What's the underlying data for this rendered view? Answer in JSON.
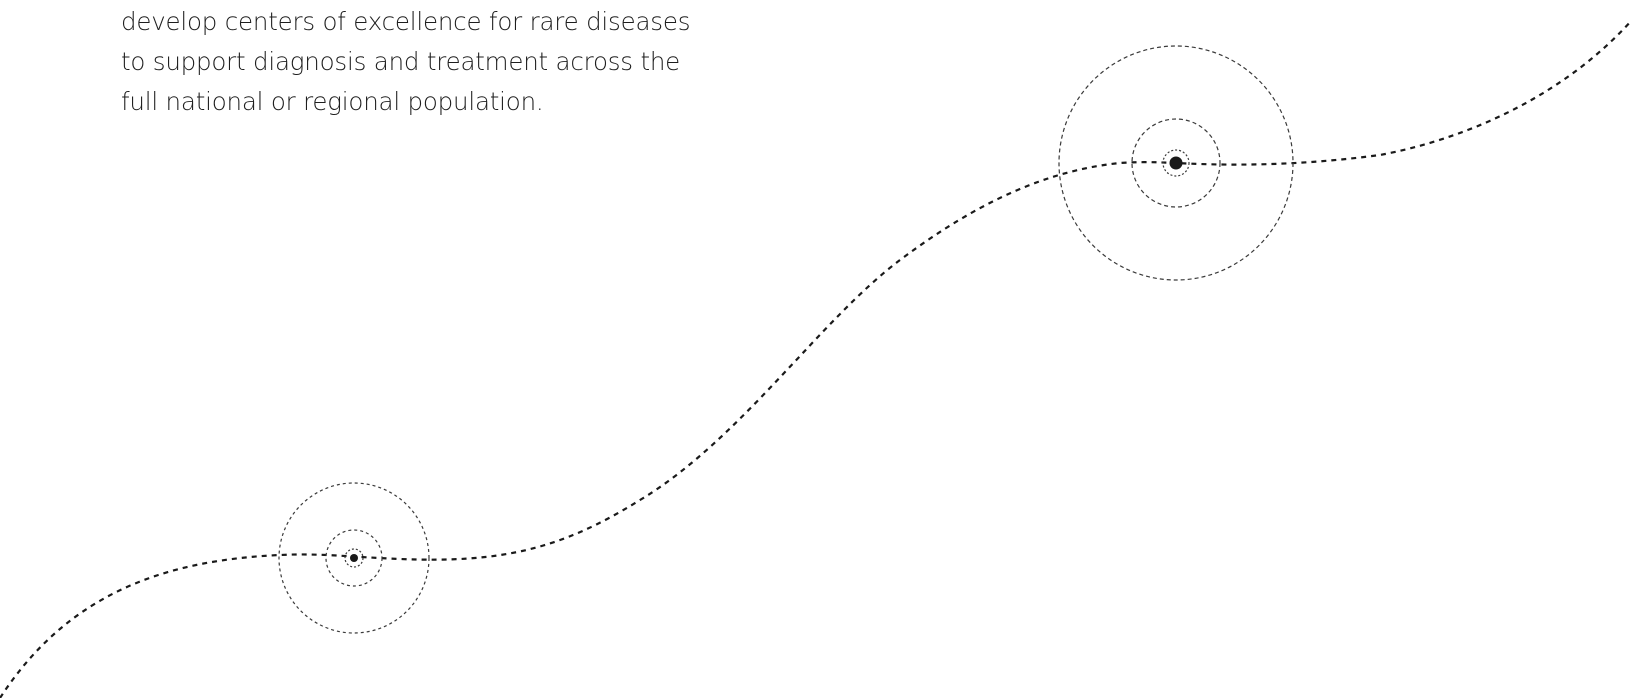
{
  "intro": {
    "lines": [
      "develop centers of excellence for rare diseases",
      "to support diagnosis and treatment across the",
      "full national or regional population."
    ]
  },
  "colors": {
    "text": "#1e1e1e",
    "path": "#1a1a1a",
    "ring": "#3a3a3a",
    "background": "#ffffff"
  },
  "graphic": {
    "path_style": "dashed",
    "milestones": [
      {
        "name": "milestone-1",
        "rings": 3,
        "marker": "filled-dot"
      },
      {
        "name": "milestone-2",
        "rings": 3,
        "marker": "filled-dot"
      }
    ]
  }
}
